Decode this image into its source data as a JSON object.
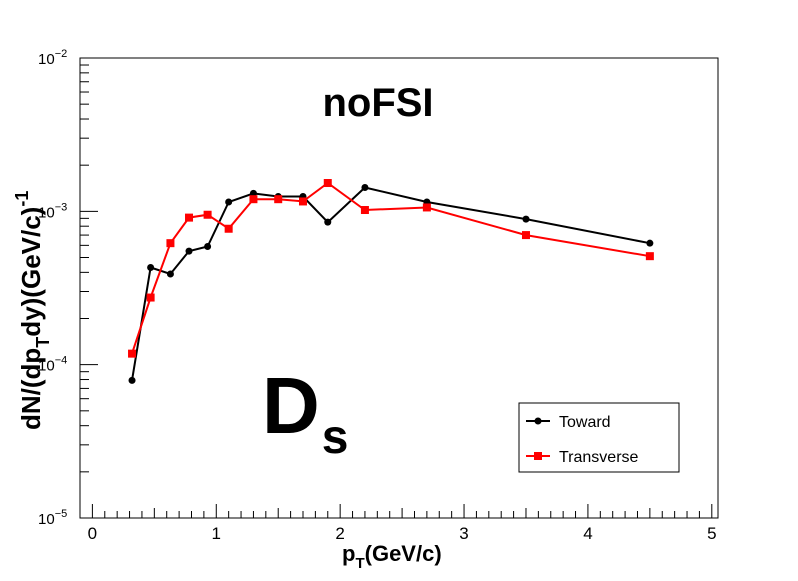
{
  "chart_data": {
    "type": "line",
    "title": "noFSI",
    "big_label": {
      "main": "D",
      "sub": "s"
    },
    "xlabel": {
      "main": "p",
      "sub": "T",
      "rest": "(GeV/c)"
    },
    "ylabel": {
      "parts": [
        "dN/(dp",
        "T",
        "dy)(GeV/c)",
        "-1"
      ]
    },
    "xlim": [
      -0.1,
      5.05
    ],
    "ylim": [
      1e-05,
      0.01
    ],
    "yscale": "log",
    "x_ticks": [
      "0",
      "1",
      "2",
      "3",
      "4",
      "5"
    ],
    "y_ticks": [
      {
        "value": 1e-05,
        "base": "10",
        "exp": "−5"
      },
      {
        "value": 0.0001,
        "base": "10",
        "exp": "−4"
      },
      {
        "value": 0.001,
        "base": "10",
        "exp": "−3"
      },
      {
        "value": 0.01,
        "base": "10",
        "exp": "−2"
      }
    ],
    "legend_position": "bottom-right",
    "grid": false,
    "series": [
      {
        "name": "Toward",
        "color": "#000000",
        "marker": "circle",
        "x": [
          0.32,
          0.47,
          0.63,
          0.78,
          0.93,
          1.1,
          1.3,
          1.5,
          1.7,
          1.9,
          2.2,
          2.7,
          3.5,
          4.5
        ],
        "y": [
          7.9e-05,
          0.00043,
          0.00039,
          0.00055,
          0.00059,
          0.00115,
          0.00131,
          0.00125,
          0.00125,
          0.00085,
          0.00143,
          0.00115,
          0.00089,
          0.00062
        ]
      },
      {
        "name": "Transverse",
        "color": "#ff0000",
        "marker": "square",
        "x": [
          0.32,
          0.47,
          0.63,
          0.78,
          0.93,
          1.1,
          1.3,
          1.5,
          1.7,
          1.9,
          2.2,
          2.7,
          3.5,
          4.5
        ],
        "y": [
          0.000118,
          0.000274,
          0.00062,
          0.00091,
          0.00095,
          0.00077,
          0.0012,
          0.0012,
          0.00116,
          0.00153,
          0.00102,
          0.00106,
          0.0007,
          0.00051
        ]
      }
    ]
  }
}
